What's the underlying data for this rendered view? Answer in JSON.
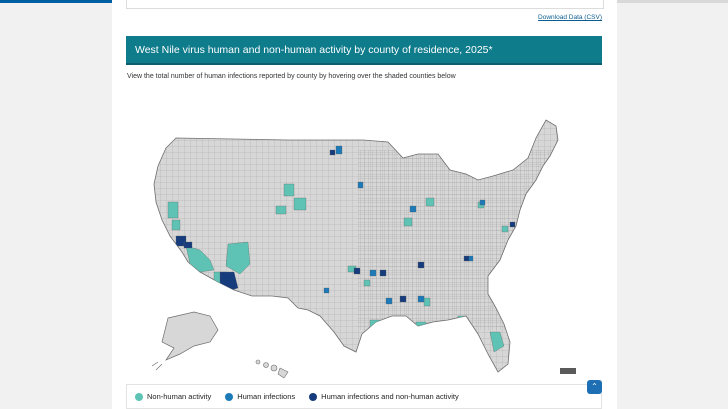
{
  "progress": {
    "fraction": 0.47
  },
  "download_label": "Download Data (CSV)",
  "title": "West Nile virus human and non-human activity by county of residence, 2025*",
  "subtitle": "View the total number of human infections reported by county by hovering over the shaded counties below",
  "colors": {
    "non_human": "#5ec3b4",
    "human": "#1d7ab8",
    "both": "#163c7e",
    "none": "#d7d7d7",
    "border": "#8a8a8a"
  },
  "legend": [
    {
      "label": "Non-human activity",
      "color_key": "non_human"
    },
    {
      "label": "Human infections",
      "color_key": "human"
    },
    {
      "label": "Human infections and non-human activity",
      "color_key": "both"
    }
  ],
  "back_to_top_icon": "chevron-up-icon"
}
